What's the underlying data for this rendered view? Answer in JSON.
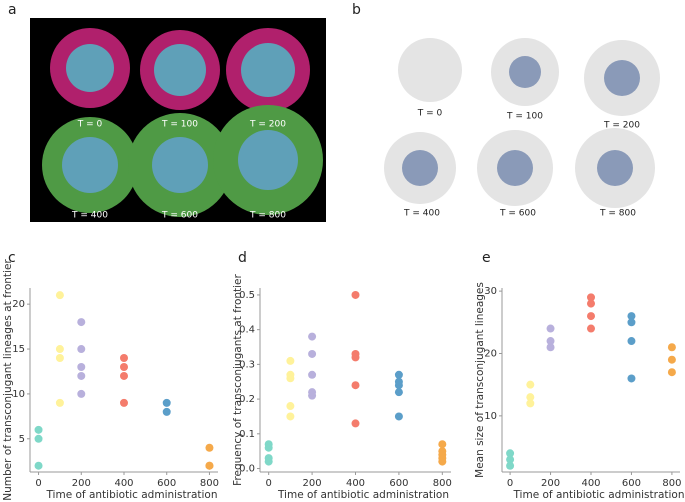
{
  "images": {
    "a": {
      "panel_label": "a",
      "captions": [
        "T = 0",
        "T = 100",
        "T = 200",
        "T = 400",
        "T = 600",
        "T = 800"
      ]
    },
    "b": {
      "panel_label": "b",
      "captions": [
        "T = 0",
        "T = 100",
        "T = 200",
        "T = 400",
        "T = 600",
        "T = 800"
      ]
    }
  },
  "chart_data": [
    {
      "type": "scatter",
      "panel_label": "c",
      "x_label": "Time of antibiotic administration",
      "y_label": "Number of transconjugant lineages at frontier",
      "x": [
        0,
        0,
        0,
        100,
        100,
        100,
        100,
        200,
        200,
        200,
        200,
        200,
        400,
        400,
        400,
        400,
        600,
        600,
        800,
        800,
        800
      ],
      "values": [
        6,
        5,
        2,
        21,
        15,
        14,
        9,
        18,
        15,
        13,
        12,
        10,
        14,
        13,
        12,
        9,
        9,
        8,
        4,
        2,
        2
      ],
      "colors": [
        "#7fd8c8",
        "#7fd8c8",
        "#7fd8c8",
        "#fff29a",
        "#fff29a",
        "#fff29a",
        "#fff29a",
        "#b8b0dc",
        "#b8b0dc",
        "#b8b0dc",
        "#b8b0dc",
        "#b8b0dc",
        "#f47c6c",
        "#f47c6c",
        "#f47c6c",
        "#f47c6c",
        "#5b9ec9",
        "#5b9ec9",
        "#f5a94a",
        "#f5a94a",
        "#f5a94a"
      ],
      "xlim": [
        -40,
        840
      ],
      "xticks": [
        0,
        200,
        400,
        600,
        800
      ],
      "ylim": [
        1.3,
        21.8
      ],
      "yticks": [
        5,
        10,
        15,
        20
      ]
    },
    {
      "type": "scatter",
      "panel_label": "d",
      "x_label": "Time of antibiotic administration",
      "y_label": "Frequency of transconjugants at frontier",
      "x": [
        0,
        0,
        0,
        0,
        100,
        100,
        100,
        100,
        100,
        200,
        200,
        200,
        200,
        200,
        400,
        400,
        400,
        400,
        400,
        600,
        600,
        600,
        600,
        600,
        800,
        800,
        800,
        800,
        800
      ],
      "values": [
        0.07,
        0.06,
        0.03,
        0.02,
        0.31,
        0.27,
        0.26,
        0.18,
        0.15,
        0.38,
        0.33,
        0.27,
        0.22,
        0.21,
        0.5,
        0.33,
        0.32,
        0.24,
        0.13,
        0.27,
        0.25,
        0.24,
        0.22,
        0.15,
        0.07,
        0.05,
        0.04,
        0.03,
        0.02
      ],
      "colors": [
        "#7fd8c8",
        "#7fd8c8",
        "#7fd8c8",
        "#7fd8c8",
        "#fff29a",
        "#fff29a",
        "#fff29a",
        "#fff29a",
        "#fff29a",
        "#b8b0dc",
        "#b8b0dc",
        "#b8b0dc",
        "#b8b0dc",
        "#b8b0dc",
        "#f47c6c",
        "#f47c6c",
        "#f47c6c",
        "#f47c6c",
        "#f47c6c",
        "#5b9ec9",
        "#5b9ec9",
        "#5b9ec9",
        "#5b9ec9",
        "#5b9ec9",
        "#f5a94a",
        "#f5a94a",
        "#f5a94a",
        "#f5a94a",
        "#f5a94a"
      ],
      "xlim": [
        -40,
        840
      ],
      "xticks": [
        0,
        200,
        400,
        600,
        800
      ],
      "ylim": [
        -0.01,
        0.52
      ],
      "yticks": [
        {
          "value": 0,
          "label": "0.0"
        },
        0.1,
        0.2,
        0.3,
        0.4,
        0.5
      ]
    },
    {
      "type": "scatter",
      "panel_label": "e",
      "x_label": "Time of antibiotic administration",
      "y_label": "Mean size of transconjugant lineages",
      "x": [
        0,
        0,
        0,
        100,
        100,
        100,
        200,
        200,
        200,
        400,
        400,
        400,
        400,
        600,
        600,
        600,
        600,
        800,
        800,
        800
      ],
      "values": [
        4,
        3,
        2,
        15,
        13,
        12,
        24,
        22,
        21,
        29,
        28,
        26,
        24,
        26,
        25,
        22,
        16,
        21,
        19,
        17
      ],
      "colors": [
        "#7fd8c8",
        "#7fd8c8",
        "#7fd8c8",
        "#fff29a",
        "#fff29a",
        "#fff29a",
        "#b8b0dc",
        "#b8b0dc",
        "#b8b0dc",
        "#f47c6c",
        "#f47c6c",
        "#f47c6c",
        "#f47c6c",
        "#5b9ec9",
        "#5b9ec9",
        "#5b9ec9",
        "#5b9ec9",
        "#f5a94a",
        "#f5a94a",
        "#f5a94a"
      ],
      "xlim": [
        -40,
        840
      ],
      "xticks": [
        0,
        200,
        400,
        600,
        800
      ],
      "ylim": [
        1,
        30.5
      ],
      "yticks": [
        10,
        20,
        30
      ]
    }
  ]
}
